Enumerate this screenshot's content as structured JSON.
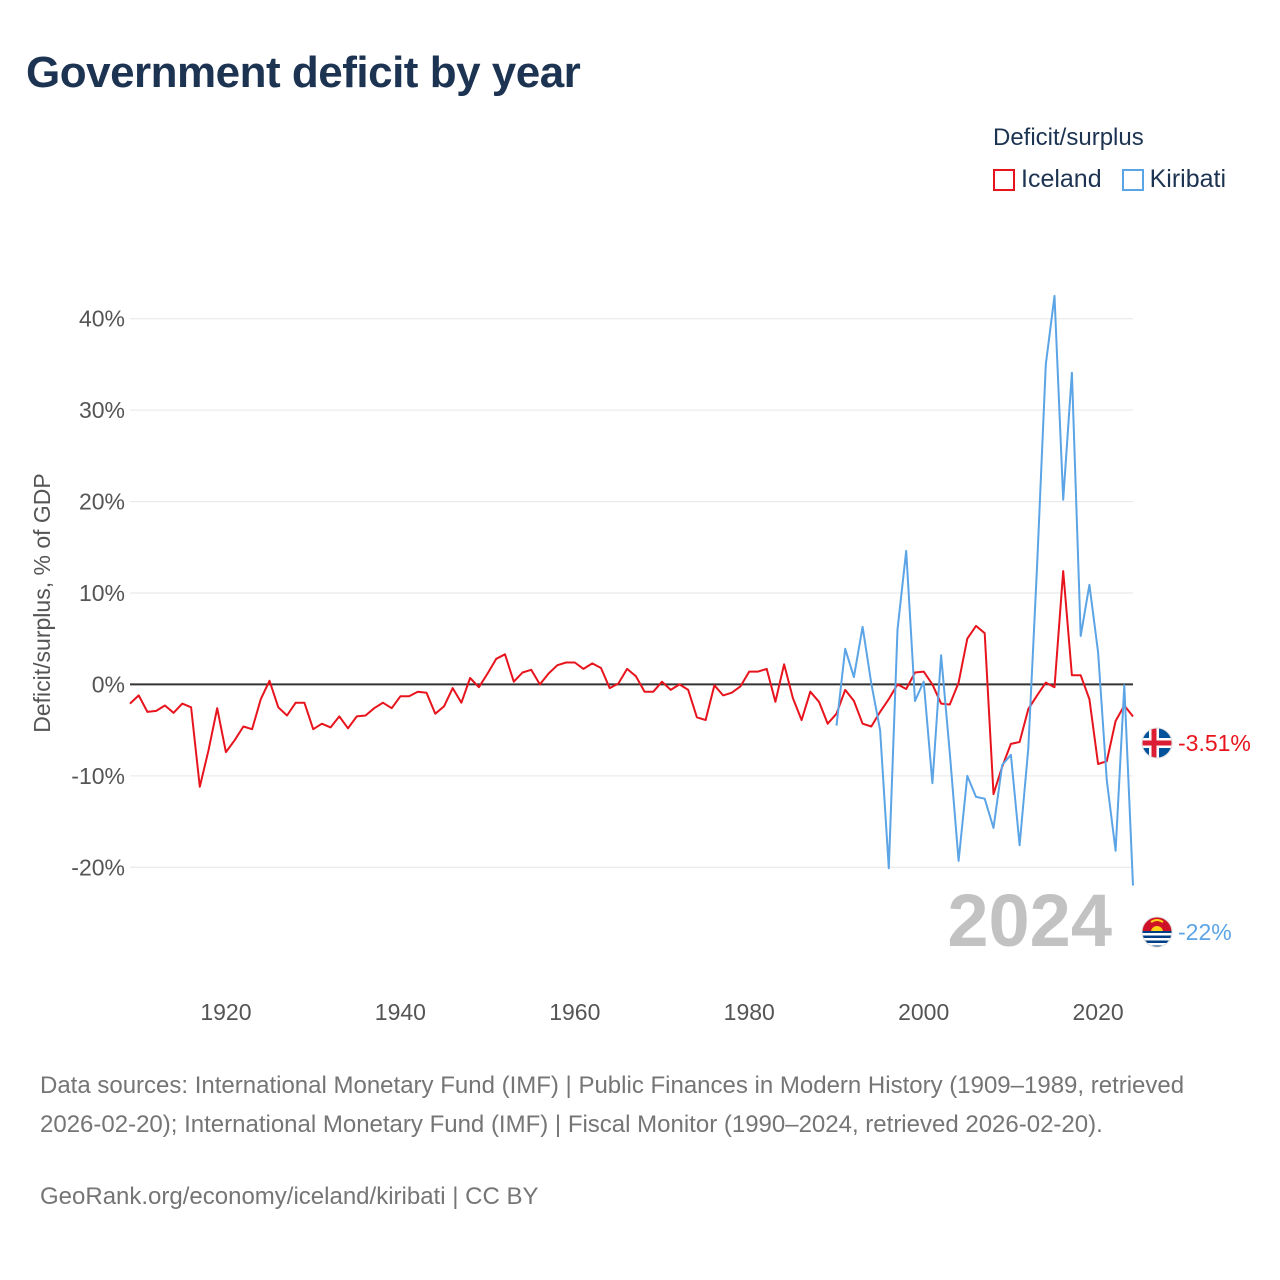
{
  "title": "Government deficit by year",
  "legend": {
    "title": "Deficit/surplus",
    "items": [
      {
        "label": "Iceland",
        "color": "#e8141d"
      },
      {
        "label": "Kiribati",
        "color": "#5ba4e6"
      }
    ]
  },
  "year_watermark": "2024",
  "end_labels": {
    "iceland": "-3.51%",
    "kiribati": "-22%"
  },
  "sources_text": "Data sources: International Monetary Fund (IMF) | Public Finances in Modern History (1909–1989, retrieved 2026-02-20); International Monetary Fund (IMF) | Fiscal Monitor (1990–2024, retrieved 2026-02-20).",
  "credit_text": "GeoRank.org/economy/iceland/kiribati | CC BY",
  "chart_data": {
    "type": "line",
    "title": "Government deficit by year",
    "xlabel": "",
    "ylabel": "Deficit/surplus, % of GDP",
    "xlim": [
      1909,
      2024
    ],
    "ylim": [
      -25,
      45
    ],
    "x_ticks": [
      1920,
      1940,
      1960,
      1980,
      2000,
      2020
    ],
    "x_tick_labels": [
      "1920",
      "1940",
      "1960",
      "1980",
      "2000",
      "2020"
    ],
    "y_ticks": [
      -20,
      -10,
      0,
      10,
      20,
      30,
      40
    ],
    "y_tick_labels": [
      "-20%",
      "-10%",
      "0%",
      "10%",
      "20%",
      "30%",
      "40%"
    ],
    "grid": true,
    "series": [
      {
        "name": "Iceland",
        "color": "#e8141d",
        "x_start": 1909,
        "values": [
          -2.1,
          -1.2,
          -3.0,
          -2.9,
          -2.3,
          -3.1,
          -2.1,
          -2.5,
          -11.2,
          -7.2,
          -2.6,
          -7.4,
          -6.1,
          -4.6,
          -4.9,
          -1.6,
          0.4,
          -2.5,
          -3.4,
          -2.0,
          -2.0,
          -4.9,
          -4.3,
          -4.7,
          -3.5,
          -4.8,
          -3.5,
          -3.4,
          -2.6,
          -2.0,
          -2.6,
          -1.3,
          -1.3,
          -0.8,
          -0.9,
          -3.2,
          -2.4,
          -0.4,
          -2.0,
          0.7,
          -0.3,
          1.2,
          2.8,
          3.3,
          0.3,
          1.3,
          1.6,
          0.0,
          1.2,
          2.1,
          2.4,
          2.4,
          1.7,
          2.3,
          1.8,
          -0.4,
          0.1,
          1.7,
          0.9,
          -0.8,
          -0.8,
          0.3,
          -0.6,
          0.0,
          -0.6,
          -3.6,
          -3.9,
          -0.1,
          -1.2,
          -0.9,
          -0.2,
          1.4,
          1.4,
          1.7,
          -1.9,
          2.2,
          -1.5,
          -3.9,
          -0.8,
          -1.9,
          -4.3,
          -3.2,
          -0.6,
          -1.8,
          -4.3,
          -4.6,
          -3.0,
          -1.6,
          0.0,
          -0.5,
          1.3,
          1.4,
          0.0,
          -2.1,
          -2.2,
          0.2,
          5.0,
          6.4,
          5.6,
          -12.0,
          -9.0,
          -6.5,
          -6.3,
          -2.7,
          -1.2,
          0.2,
          -0.3,
          12.4,
          1.0,
          1.0,
          -1.6,
          -8.7,
          -8.4,
          -4.0,
          -2.3,
          -3.51
        ]
      },
      {
        "name": "Kiribati",
        "color": "#5ba4e6",
        "x_start": 1990,
        "values": [
          -4.5,
          3.9,
          0.8,
          6.3,
          0.1,
          -5.0,
          -20.1,
          6.0,
          14.6,
          -1.8,
          0.3,
          -10.8,
          3.2,
          -7.5,
          -19.3,
          -10.0,
          -12.3,
          -12.5,
          -15.7,
          -8.8,
          -7.7,
          -17.6,
          -7.0,
          13.0,
          35.0,
          42.5,
          20.2,
          34.1,
          5.3,
          10.9,
          3.5,
          -10.5,
          -18.2,
          -0.1,
          -22.0
        ]
      }
    ]
  }
}
